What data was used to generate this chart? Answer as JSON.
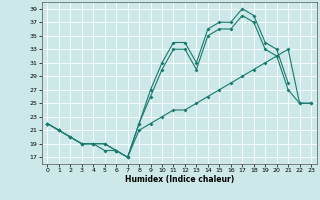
{
  "xlabel": "Humidex (Indice chaleur)",
  "bg_color": "#cce8e8",
  "line_color": "#1a7a6e",
  "grid_color": "#ffffff",
  "xlim": [
    -0.5,
    23.5
  ],
  "ylim": [
    16,
    40
  ],
  "yticks": [
    17,
    19,
    21,
    23,
    25,
    27,
    29,
    31,
    33,
    35,
    37,
    39
  ],
  "xticks": [
    0,
    1,
    2,
    3,
    4,
    5,
    6,
    7,
    8,
    9,
    10,
    11,
    12,
    13,
    14,
    15,
    16,
    17,
    18,
    19,
    20,
    21,
    22,
    23
  ],
  "series1_x": [
    0,
    1,
    2,
    3,
    4,
    5,
    6,
    7,
    8,
    9,
    10,
    11,
    12,
    13,
    14,
    15,
    16,
    17,
    18,
    19,
    20,
    21
  ],
  "series1_y": [
    22,
    21,
    20,
    19,
    19,
    19,
    18,
    17,
    22,
    27,
    31,
    34,
    34,
    31,
    36,
    37,
    37,
    39,
    38,
    34,
    33,
    28
  ],
  "series2_x": [
    0,
    1,
    2,
    3,
    4,
    5,
    6,
    7,
    8,
    9,
    10,
    11,
    12,
    13,
    14,
    15,
    16,
    17,
    18,
    19,
    20,
    21,
    22,
    23
  ],
  "series2_y": [
    22,
    21,
    20,
    19,
    19,
    19,
    18,
    17,
    22,
    26,
    30,
    33,
    33,
    30,
    35,
    36,
    36,
    38,
    37,
    33,
    32,
    27,
    25,
    25
  ],
  "series3_x": [
    0,
    1,
    2,
    3,
    4,
    5,
    6,
    7,
    8,
    9,
    10,
    11,
    12,
    13,
    14,
    15,
    16,
    17,
    18,
    19,
    20,
    21,
    22,
    23
  ],
  "series3_y": [
    22,
    21,
    20,
    19,
    19,
    18,
    18,
    17,
    21,
    22,
    23,
    24,
    24,
    25,
    26,
    27,
    28,
    29,
    30,
    31,
    32,
    33,
    25,
    25
  ]
}
